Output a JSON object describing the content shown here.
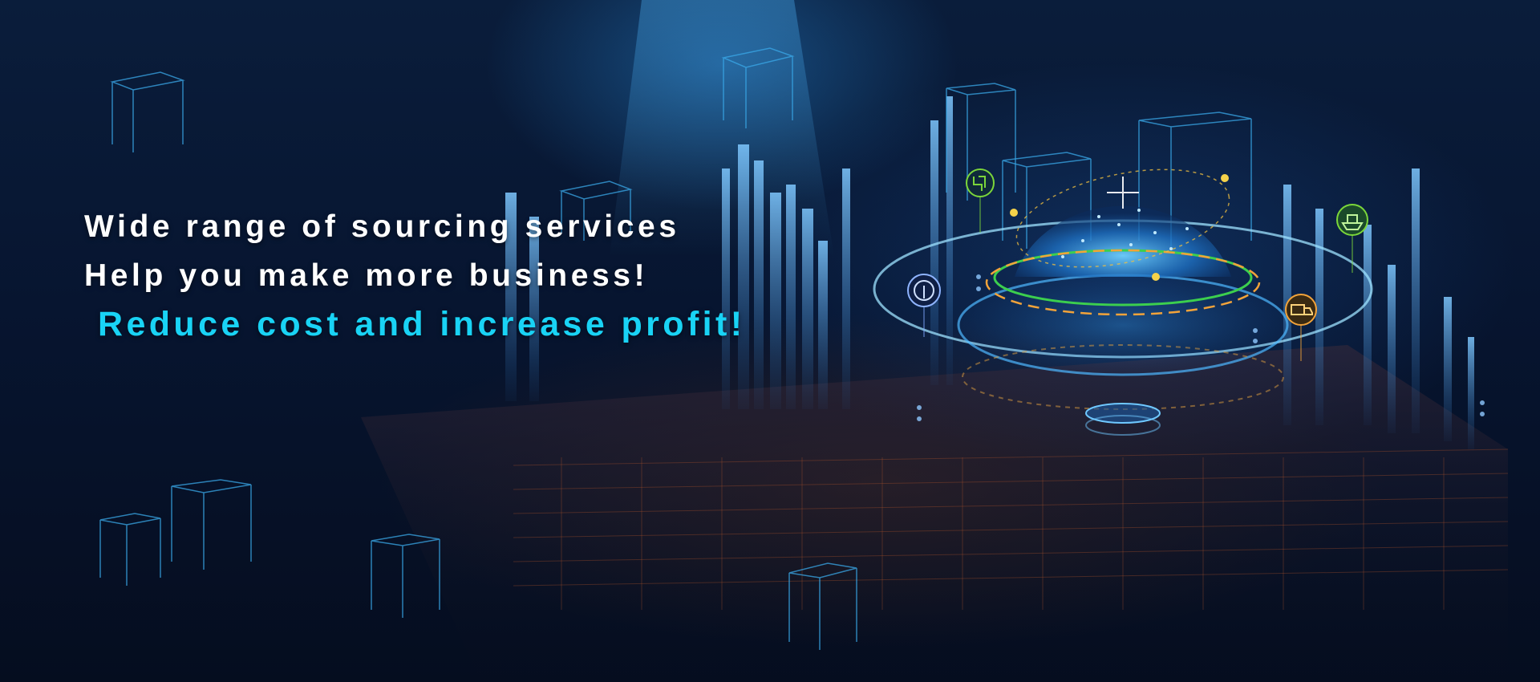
{
  "banner": {
    "line1": "Wide range of sourcing services",
    "line2": "Help you make more business!",
    "line3": "Reduce cost and increase profit!"
  },
  "icons": [
    "pipe-fitting-icon",
    "ship-icon",
    "signal-icon",
    "truck-icon"
  ],
  "colors": {
    "background": "#061226",
    "headline": "#ffffff",
    "accent": "#19d3f5",
    "ring": "#7fd8ff",
    "icon_green": "#7bd63a",
    "icon_orange": "#f2a33a"
  }
}
